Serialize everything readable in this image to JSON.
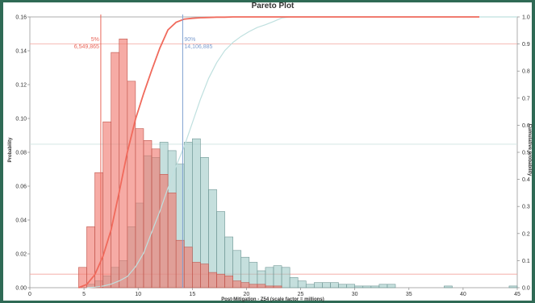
{
  "chart_data": {
    "type": "bar",
    "title": "Pareto Plot",
    "xlabel": "Post-Mitigation - Z54 (scale factor = millions)",
    "ylabel": "Probability",
    "y2label": "Cumulative probability",
    "xlim": [
      0,
      45
    ],
    "ylim": [
      0,
      0.16
    ],
    "y2lim": [
      0,
      1.0
    ],
    "x_ticks": [
      0,
      5,
      10,
      15,
      20,
      25,
      30,
      35,
      40,
      45
    ],
    "y_ticks": [
      0.0,
      0.02,
      0.04,
      0.06,
      0.08,
      0.1,
      0.12,
      0.14,
      0.16
    ],
    "y_tick_labels": [
      "0.00",
      "0.02",
      "0.04",
      "0.06",
      "0.08",
      "0.10",
      "0.12",
      "0.14",
      "0.16"
    ],
    "y2_ticks": [
      0.0,
      0.1,
      0.2,
      0.3,
      0.4,
      0.5,
      0.6,
      0.7,
      0.8,
      0.9,
      1.0
    ],
    "y2_tick_labels": [
      "0.0",
      "0.1",
      "0.2",
      "0.3",
      "0.4",
      "0.5",
      "0.6",
      "0.7",
      "0.8",
      "0.9",
      "1.0"
    ],
    "grid": false,
    "bin_width": 0.75,
    "series": [
      {
        "name": "",
        "color": "#f28c82",
        "bins_start": [
          4.5,
          5.25,
          6.0,
          6.75,
          7.5,
          8.25,
          9.0,
          9.75,
          10.5,
          11.25,
          12.0,
          12.75,
          13.5,
          14.25,
          15.0,
          15.75,
          16.5,
          17.25,
          18.0,
          18.75,
          19.5,
          20.25,
          21.0,
          21.75,
          22.5
        ],
        "values": [
          0.012,
          0.036,
          0.068,
          0.098,
          0.139,
          0.147,
          0.122,
          0.094,
          0.087,
          0.082,
          0.067,
          0.056,
          0.028,
          0.024,
          0.015,
          0.014,
          0.009,
          0.008,
          0.007,
          0.004,
          0.003,
          0.002,
          0.002,
          0.001,
          0.001
        ],
        "cumulative": [
          0.0,
          0.012,
          0.048,
          0.116,
          0.214,
          0.353,
          0.5,
          0.622,
          0.716,
          0.803,
          0.885,
          0.952,
          0.98,
          0.992,
          0.995,
          0.997,
          0.998,
          0.999,
          0.999,
          1.0,
          1.0,
          1.0,
          1.0,
          1.0,
          1.0,
          1.0
        ]
      },
      {
        "name": "",
        "color": "#a8cfcc",
        "bins_start": [
          5.25,
          6.0,
          6.75,
          7.5,
          8.25,
          9.0,
          9.75,
          10.5,
          11.25,
          12.0,
          12.75,
          13.5,
          14.25,
          15.0,
          15.75,
          16.5,
          17.25,
          18.0,
          18.75,
          19.5,
          20.25,
          21.0,
          21.75,
          22.5,
          23.25,
          24.0,
          24.75,
          25.5,
          26.25,
          27.0,
          27.75,
          28.5,
          29.25,
          30.0,
          30.75,
          31.5,
          32.25,
          33.0,
          38.25,
          44.25
        ],
        "values": [
          0.002,
          0.004,
          0.007,
          0.012,
          0.016,
          0.036,
          0.05,
          0.078,
          0.077,
          0.086,
          0.081,
          0.073,
          0.086,
          0.088,
          0.077,
          0.058,
          0.045,
          0.03,
          0.022,
          0.018,
          0.015,
          0.01,
          0.012,
          0.013,
          0.012,
          0.006,
          0.004,
          0.002,
          0.003,
          0.003,
          0.003,
          0.002,
          0.002,
          0.001,
          0.001,
          0.001,
          0.002,
          0.002,
          0.001,
          0.001
        ],
        "cumulative": [
          0.0,
          0.002,
          0.006,
          0.013,
          0.025,
          0.041,
          0.077,
          0.127,
          0.205,
          0.282,
          0.368,
          0.449,
          0.522,
          0.608,
          0.696,
          0.773,
          0.831,
          0.876,
          0.906,
          0.928,
          0.946,
          0.961,
          0.971,
          0.983,
          0.996,
          1.0,
          1.0,
          1.0,
          1.0,
          1.0,
          1.0,
          1.0,
          1.0,
          1.0,
          1.0,
          1.0,
          1.0,
          1.0,
          1.0,
          1.0,
          1.0
        ]
      }
    ],
    "markers": [
      {
        "x": 6.55,
        "pct_label": "5%",
        "value_label": "6,549,865",
        "color": "#e8665a",
        "cum": 0.05
      },
      {
        "x": 14.11,
        "pct_label": "90%",
        "value_label": "14,106,885",
        "color": "#7e9fd0",
        "cum": 0.9
      }
    ],
    "cum_ref_lines": [
      0.9,
      0.53,
      0.05
    ]
  }
}
